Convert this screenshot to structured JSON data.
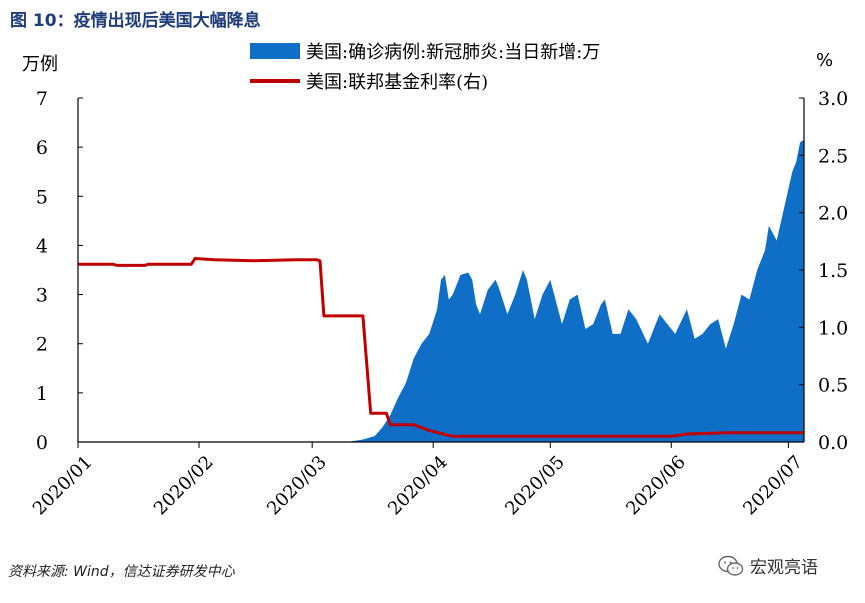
{
  "figure_title": "图 10：疫情出现后美国大幅降息",
  "unit_left": "万例",
  "unit_right": "%",
  "source": "资料来源: Wind，信达证券研发中心",
  "watermark": "宏观亮语",
  "colors": {
    "area": "#0f6fc6",
    "line": "#c00000",
    "title": "#1f3d7a"
  },
  "chart_data": {
    "type": "area+line",
    "legend": [
      {
        "name": "美国:确诊病例:新冠肺炎:当日新增:万",
        "kind": "area",
        "color": "#0f6fc6"
      },
      {
        "name": "美国:联邦基金利率(右)",
        "kind": "line",
        "color": "#c00000"
      }
    ],
    "x_range": [
      "2020-01-01",
      "2020-07-05"
    ],
    "x_ticks": [
      "2020/01",
      "2020/02",
      "2020/03",
      "2020/04",
      "2020/05",
      "2020/06",
      "2020/07"
    ],
    "y_left": {
      "unit": "万例",
      "min": 0,
      "max": 7,
      "ticks": [
        "0",
        "1",
        "2",
        "3",
        "4",
        "5",
        "6",
        "7"
      ]
    },
    "y_right": {
      "unit": "%",
      "min": 0,
      "max": 3,
      "ticks": [
        "0.0",
        "0.5",
        "1.0",
        "1.5",
        "2.0",
        "2.5",
        "3.0"
      ]
    },
    "series": [
      {
        "name": "美国:确诊病例:新冠肺炎:当日新增:万",
        "axis": "left",
        "points": [
          [
            "2020-03-10",
            0
          ],
          [
            "2020-03-14",
            0.05
          ],
          [
            "2020-03-17",
            0.12
          ],
          [
            "2020-03-19",
            0.3
          ],
          [
            "2020-03-21",
            0.55
          ],
          [
            "2020-03-23",
            0.9
          ],
          [
            "2020-03-25",
            1.2
          ],
          [
            "2020-03-27",
            1.7
          ],
          [
            "2020-03-29",
            2.0
          ],
          [
            "2020-03-31",
            2.2
          ],
          [
            "2020-04-02",
            2.7
          ],
          [
            "2020-04-03",
            3.3
          ],
          [
            "2020-04-04",
            3.4
          ],
          [
            "2020-04-05",
            2.9
          ],
          [
            "2020-04-06",
            3.0
          ],
          [
            "2020-04-07",
            3.2
          ],
          [
            "2020-04-08",
            3.4
          ],
          [
            "2020-04-10",
            3.45
          ],
          [
            "2020-04-11",
            3.3
          ],
          [
            "2020-04-12",
            2.8
          ],
          [
            "2020-04-13",
            2.6
          ],
          [
            "2020-04-15",
            3.1
          ],
          [
            "2020-04-17",
            3.3
          ],
          [
            "2020-04-18",
            3.1
          ],
          [
            "2020-04-20",
            2.6
          ],
          [
            "2020-04-22",
            3.0
          ],
          [
            "2020-04-24",
            3.5
          ],
          [
            "2020-04-25",
            3.3
          ],
          [
            "2020-04-27",
            2.5
          ],
          [
            "2020-04-29",
            3.0
          ],
          [
            "2020-05-01",
            3.3
          ],
          [
            "2020-05-02",
            3.0
          ],
          [
            "2020-05-04",
            2.4
          ],
          [
            "2020-05-06",
            2.9
          ],
          [
            "2020-05-08",
            3.0
          ],
          [
            "2020-05-10",
            2.3
          ],
          [
            "2020-05-12",
            2.4
          ],
          [
            "2020-05-14",
            2.8
          ],
          [
            "2020-05-15",
            2.9
          ],
          [
            "2020-05-17",
            2.2
          ],
          [
            "2020-05-19",
            2.2
          ],
          [
            "2020-05-21",
            2.7
          ],
          [
            "2020-05-23",
            2.5
          ],
          [
            "2020-05-26",
            2.0
          ],
          [
            "2020-05-29",
            2.6
          ],
          [
            "2020-05-31",
            2.4
          ],
          [
            "2020-06-02",
            2.2
          ],
          [
            "2020-06-05",
            2.7
          ],
          [
            "2020-06-07",
            2.1
          ],
          [
            "2020-06-09",
            2.2
          ],
          [
            "2020-06-11",
            2.4
          ],
          [
            "2020-06-13",
            2.5
          ],
          [
            "2020-06-15",
            1.9
          ],
          [
            "2020-06-17",
            2.4
          ],
          [
            "2020-06-19",
            3.0
          ],
          [
            "2020-06-21",
            2.9
          ],
          [
            "2020-06-23",
            3.5
          ],
          [
            "2020-06-25",
            3.9
          ],
          [
            "2020-06-26",
            4.4
          ],
          [
            "2020-06-28",
            4.1
          ],
          [
            "2020-06-30",
            4.8
          ],
          [
            "2020-07-02",
            5.5
          ],
          [
            "2020-07-03",
            5.7
          ],
          [
            "2020-07-04",
            6.1
          ],
          [
            "2020-07-05",
            6.15
          ]
        ]
      },
      {
        "name": "美国:联邦基金利率(右)",
        "axis": "right",
        "points": [
          [
            "2020-01-01",
            1.55
          ],
          [
            "2020-01-10",
            1.55
          ],
          [
            "2020-01-11",
            1.54
          ],
          [
            "2020-01-18",
            1.54
          ],
          [
            "2020-01-19",
            1.55
          ],
          [
            "2020-01-30",
            1.55
          ],
          [
            "2020-01-31",
            1.6
          ],
          [
            "2020-02-05",
            1.59
          ],
          [
            "2020-02-15",
            1.58
          ],
          [
            "2020-02-26",
            1.59
          ],
          [
            "2020-03-02",
            1.59
          ],
          [
            "2020-03-03",
            1.58
          ],
          [
            "2020-03-04",
            1.1
          ],
          [
            "2020-03-14",
            1.1
          ],
          [
            "2020-03-16",
            0.25
          ],
          [
            "2020-03-20",
            0.25
          ],
          [
            "2020-03-21",
            0.15
          ],
          [
            "2020-03-27",
            0.15
          ],
          [
            "2020-03-31",
            0.1
          ],
          [
            "2020-04-06",
            0.05
          ],
          [
            "2020-04-20",
            0.05
          ],
          [
            "2020-05-05",
            0.05
          ],
          [
            "2020-05-20",
            0.05
          ],
          [
            "2020-06-01",
            0.05
          ],
          [
            "2020-06-05",
            0.07
          ],
          [
            "2020-06-15",
            0.08
          ],
          [
            "2020-07-05",
            0.08
          ]
        ]
      }
    ]
  }
}
